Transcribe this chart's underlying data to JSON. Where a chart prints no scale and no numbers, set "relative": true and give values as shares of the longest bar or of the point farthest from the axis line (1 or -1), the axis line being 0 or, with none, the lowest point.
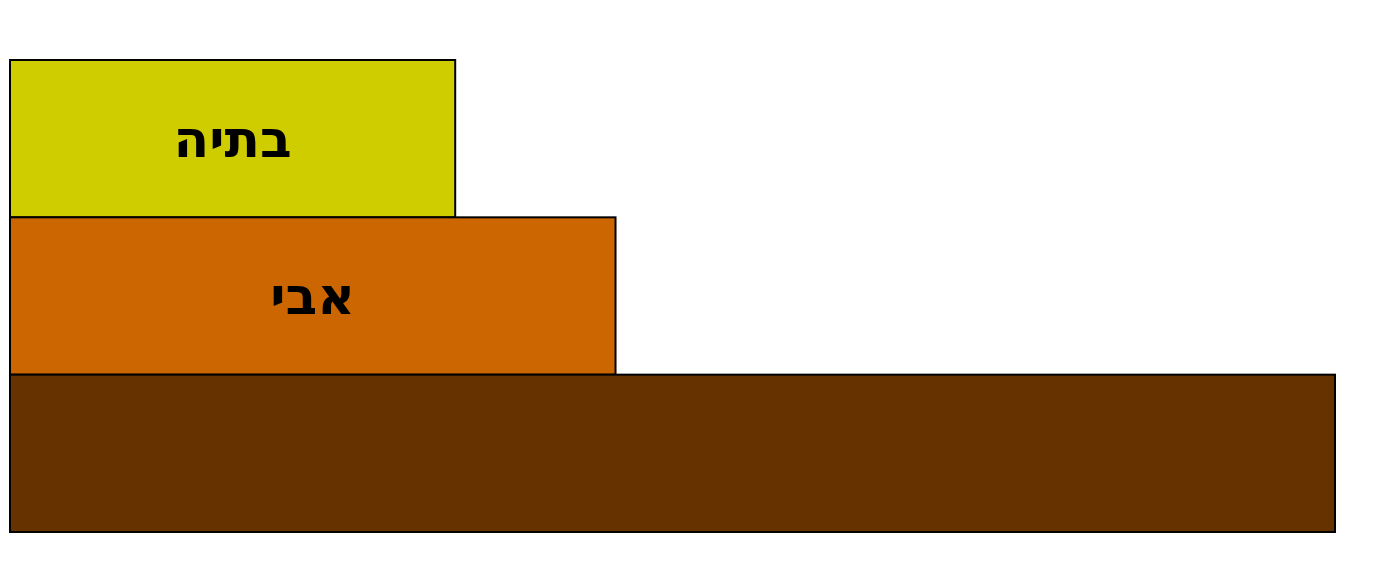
{
  "chart_data": {
    "type": "bar",
    "orientation": "horizontal",
    "relative": true,
    "categories": [
      "בתיה",
      "אבי",
      null
    ],
    "values": [
      0.336,
      0.457,
      1.0
    ],
    "colors": [
      "#cfcc00",
      "#cc6600",
      "#663300"
    ]
  }
}
